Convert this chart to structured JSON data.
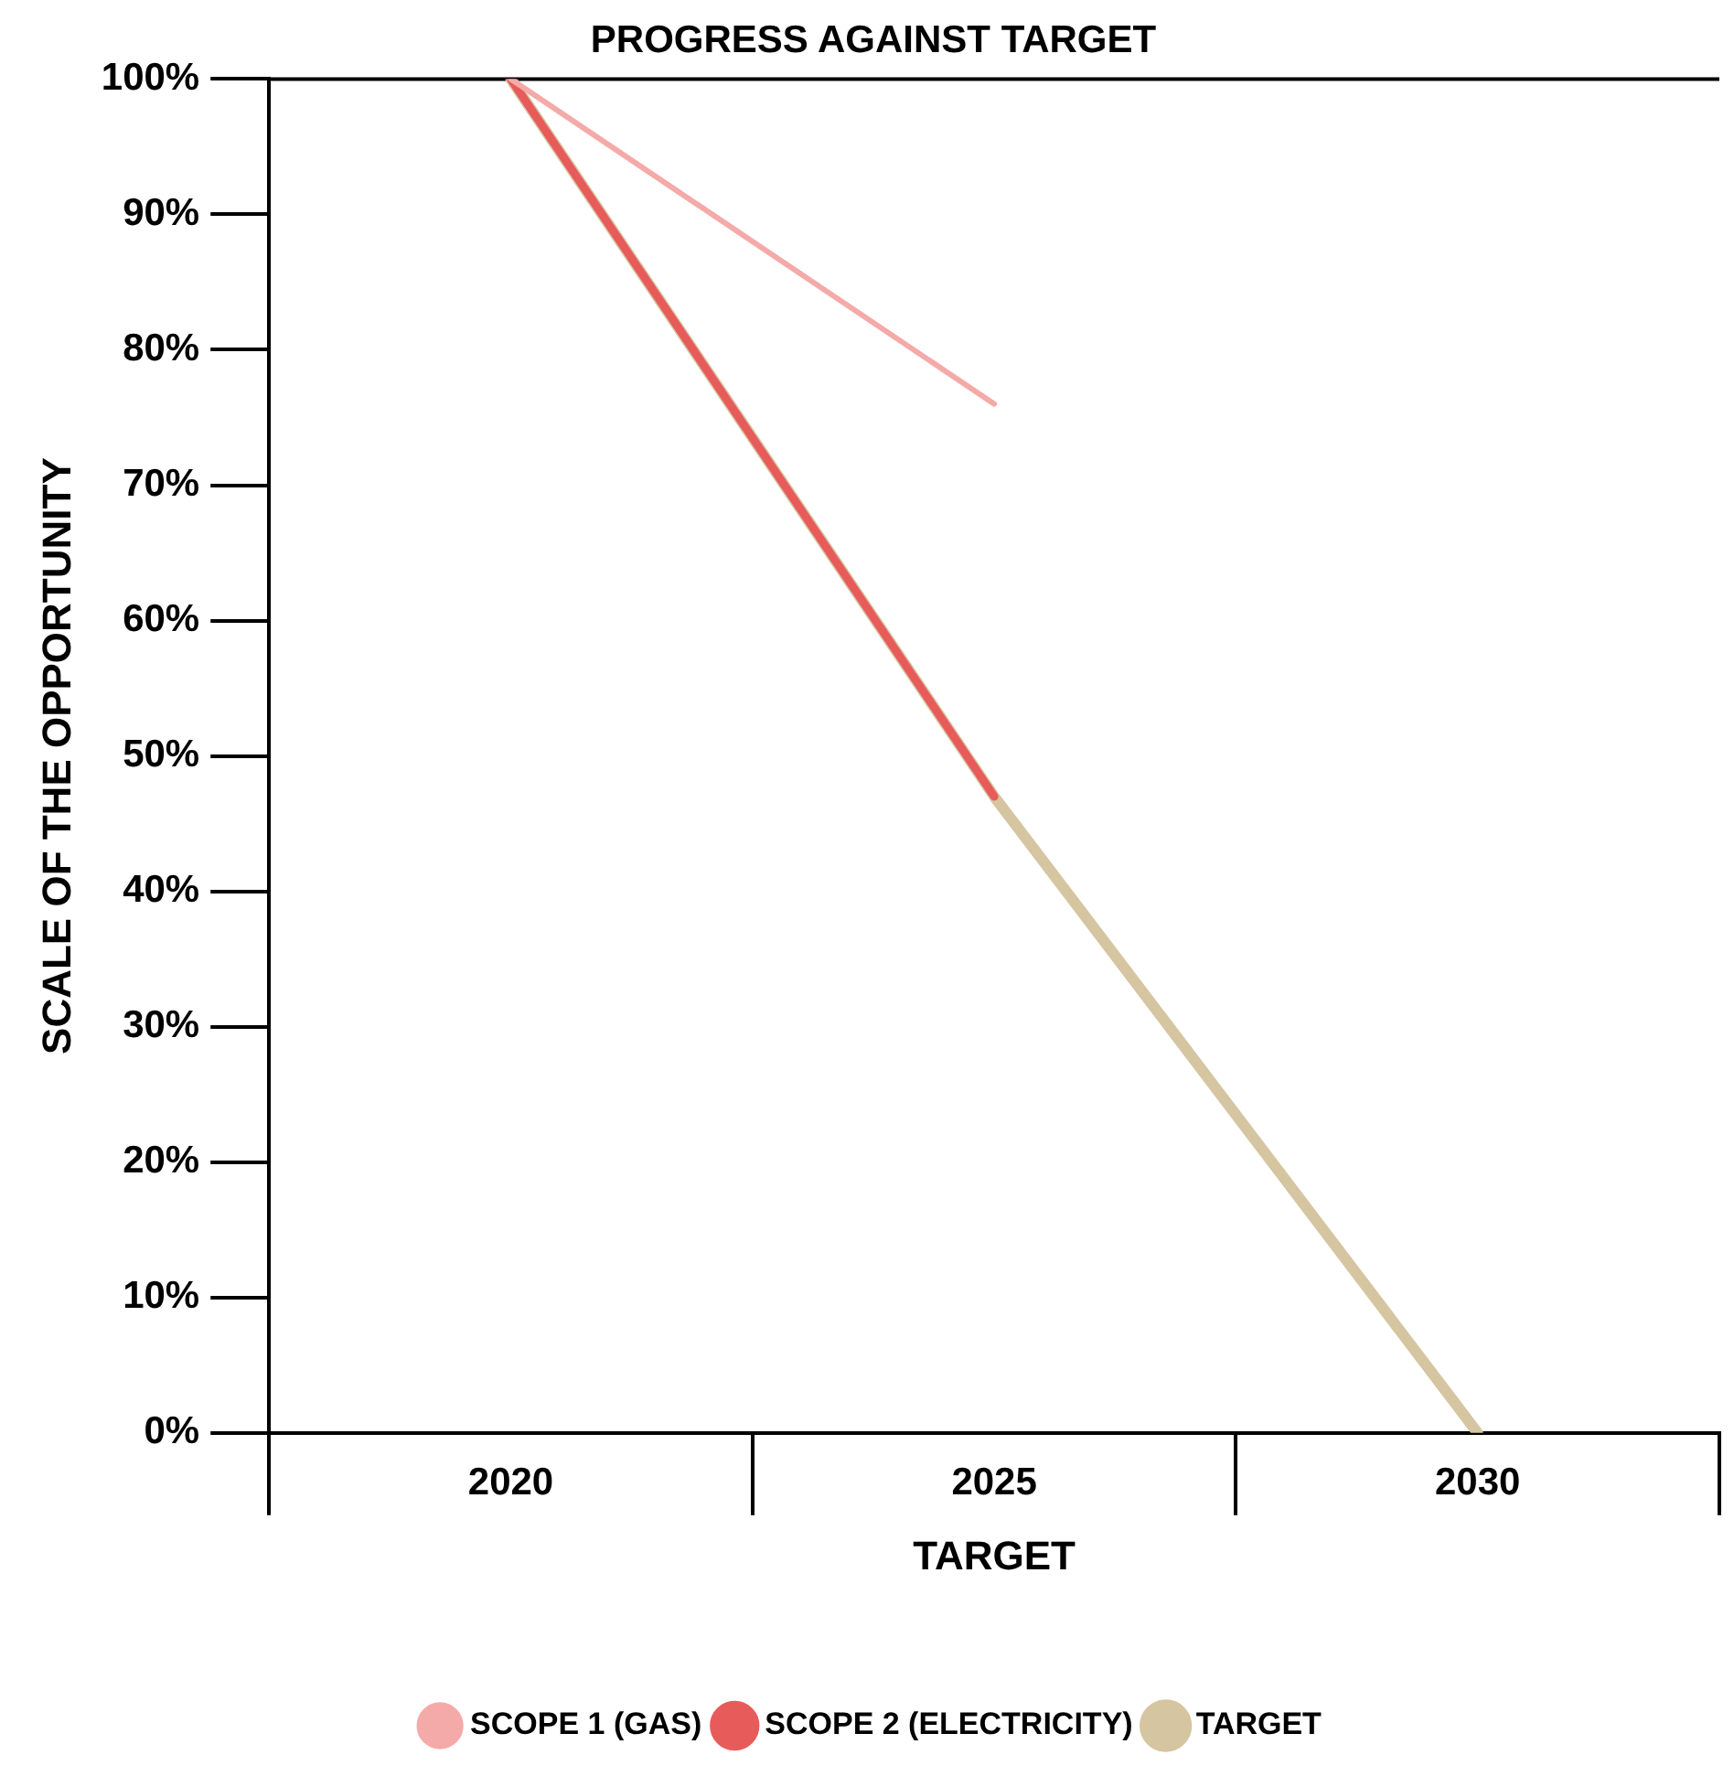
{
  "chart_data": {
    "type": "line",
    "title": "PROGRESS AGAINST TARGET",
    "xlabel": "TARGET",
    "ylabel": "SCALE OF THE OPPORTUNITY",
    "categories": [
      "2020",
      "2025",
      "2030"
    ],
    "series": [
      {
        "name": "SCOPE 1 (GAS)",
        "color": "#f4aaa8",
        "values": [
          100,
          76,
          null
        ]
      },
      {
        "name": "SCOPE 2 (ELECTRICITY)",
        "color": "#e85b5b",
        "values": [
          100,
          47,
          null
        ]
      },
      {
        "name": "TARGET",
        "color": "#d5c5a1",
        "values": [
          100,
          47,
          0
        ]
      }
    ],
    "ylim": [
      0,
      100
    ],
    "yticks": [
      {
        "value": 0,
        "label": "0%"
      },
      {
        "value": 10,
        "label": "10%"
      },
      {
        "value": 20,
        "label": "20%"
      },
      {
        "value": 30,
        "label": "30%"
      },
      {
        "value": 40,
        "label": "40%"
      },
      {
        "value": 50,
        "label": "50%"
      },
      {
        "value": 60,
        "label": "60%"
      },
      {
        "value": 70,
        "label": "70%"
      },
      {
        "value": 80,
        "label": "80%"
      },
      {
        "value": 90,
        "label": "90%"
      },
      {
        "value": 100,
        "label": "100%"
      }
    ],
    "ref_lines": [
      {
        "axis": "y",
        "value": 100,
        "color": "#000000"
      }
    ],
    "grid": false,
    "legend": "bottom",
    "marker": "none",
    "line_style": "solid"
  }
}
